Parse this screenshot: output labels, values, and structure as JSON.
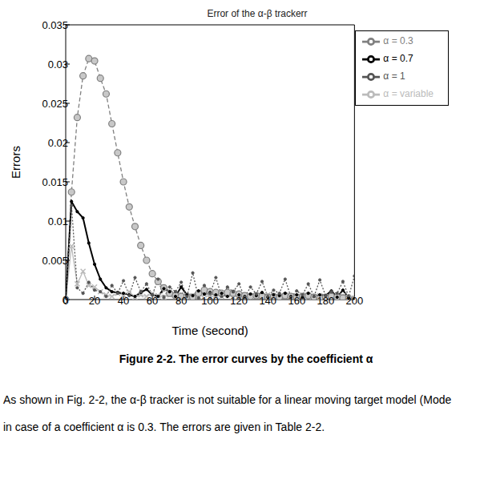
{
  "chart_data": {
    "type": "line",
    "title": "Error of the α-β trackerr",
    "x_label": "Time (second)",
    "y_label": "Errors",
    "x": [
      0,
      4,
      8,
      12,
      16,
      20,
      24,
      28,
      32,
      36,
      40,
      44,
      48,
      52,
      56,
      60,
      64,
      68,
      72,
      76,
      80,
      84,
      88,
      92,
      96,
      100,
      104,
      108,
      112,
      116,
      120,
      124,
      128,
      132,
      136,
      140,
      144,
      148,
      152,
      156,
      160,
      164,
      168,
      172,
      176,
      180,
      184,
      188,
      192,
      196,
      200
    ],
    "series": [
      {
        "name": "α = variable",
        "color": "#bbbbbb",
        "marker": "x",
        "line_style": "solid",
        "values": [
          0,
          0.0068,
          0.002,
          0.0036,
          0.0018,
          0.0016,
          0.001,
          0.0006,
          0.0004,
          0.0008,
          0.0006,
          0.001,
          0.0003,
          0.0006,
          0.0004,
          0.0008,
          0.0005,
          0.0003,
          0.0006,
          0.0004,
          0.0007,
          0.0003,
          0.0005,
          0.0004,
          0.0006,
          0.0003,
          0.0005,
          0.0004,
          0.0006,
          0.0003,
          0.0005,
          0.0004,
          0.0003,
          0.0005,
          0.0004,
          0.0006,
          0.0003,
          0.0004,
          0.0005,
          0.0003,
          0.0004,
          0.0006,
          0.0003,
          0.0004,
          0.0005,
          0.0003,
          0.0004,
          0.0003,
          0.0005,
          0.0003,
          0.0002
        ]
      },
      {
        "name": "α = 0.3",
        "color": "#808080",
        "marker": "circle",
        "line_style": "dashed",
        "values": [
          0,
          0.0137,
          0.0232,
          0.0285,
          0.0307,
          0.0304,
          0.0282,
          0.0262,
          0.0224,
          0.0187,
          0.015,
          0.0118,
          0.0093,
          0.0069,
          0.005,
          0.0033,
          0.0023,
          0.0015,
          0.0008,
          0.0005,
          0.0004,
          0.0004,
          0.0003,
          0.0008,
          0.0012,
          0.001,
          0.0009,
          0.0008,
          0.0009,
          0.0008,
          0.0007,
          0.0005,
          0.0004,
          0.0005,
          0.0004,
          0.0003,
          0.0004,
          0.0003,
          0.0005,
          0.0004,
          0.0003,
          0.0004,
          0.0005,
          0.0003,
          0.0002,
          0.0003,
          0.0004,
          0.0003,
          0.0002,
          0.0001,
          0
        ]
      },
      {
        "name": "α = 0.7",
        "color": "#000000",
        "marker": "dot",
        "line_style": "solid",
        "values": [
          0,
          0.0125,
          0.0112,
          0.0104,
          0.0072,
          0.0045,
          0.0026,
          0.0015,
          0.001,
          0.0009,
          0.0008,
          0.0006,
          0.0004,
          0.0009,
          0.0013,
          0.0006,
          0.0004,
          0.0014,
          0.001,
          0.0004,
          0.0016,
          0.0006,
          0.0005,
          0.0011,
          0.0007,
          0.0009,
          0.0006,
          0.0008,
          0.0004,
          0.001,
          0.0006,
          0.0004,
          0.0007,
          0.0005,
          0.0009,
          0.0003,
          0.0006,
          0.0005,
          0.0008,
          0.0004,
          0.0006,
          0.0003,
          0.0008,
          0.0004,
          0.0006,
          0.0005,
          0.0011,
          0.0003,
          0.0012,
          0.0002,
          0.0001
        ]
      },
      {
        "name": "α = 1",
        "color": "#555555",
        "marker": "dot",
        "line_style": "dotted",
        "values": [
          0,
          0.012,
          0.0015,
          0.0008,
          0.0022,
          0.0012,
          0.001,
          0.0004,
          0.0018,
          0.0008,
          0.0024,
          0.0005,
          0.0028,
          0.001,
          0.002,
          0.0006,
          0.0026,
          0.0003,
          0.0016,
          0.001,
          0.0022,
          0.0004,
          0.0034,
          0.0002,
          0.0018,
          0.0008,
          0.0028,
          0.0004,
          0.0016,
          0.001,
          0.002,
          0.0003,
          0.0016,
          0.0007,
          0.0023,
          0.0004,
          0.0012,
          0.0008,
          0.0026,
          0.0003,
          0.0011,
          0.0006,
          0.002,
          0.0004,
          0.0025,
          0.0005,
          0.001,
          0.0008,
          0.0023,
          0.0004,
          0.003
        ]
      }
    ],
    "xlim": [
      0,
      200
    ],
    "xticks": [
      0,
      20,
      40,
      60,
      80,
      100,
      120,
      140,
      160,
      180,
      200
    ],
    "ylim": [
      0,
      0.035
    ],
    "yticks": [
      0,
      0.005,
      0.01,
      0.015,
      0.02,
      0.025,
      0.03,
      0.035
    ],
    "legend": "upper right",
    "grid": false
  },
  "caption": "Figure 2-2. The error curves by the coefficient α",
  "paragraph": [
    "As shown in Fig. 2-2, the α-β tracker is not suitable for a linear moving target model (Mode",
    "in case of a coefficient α is 0.3. The errors are given in Table 2-2."
  ]
}
